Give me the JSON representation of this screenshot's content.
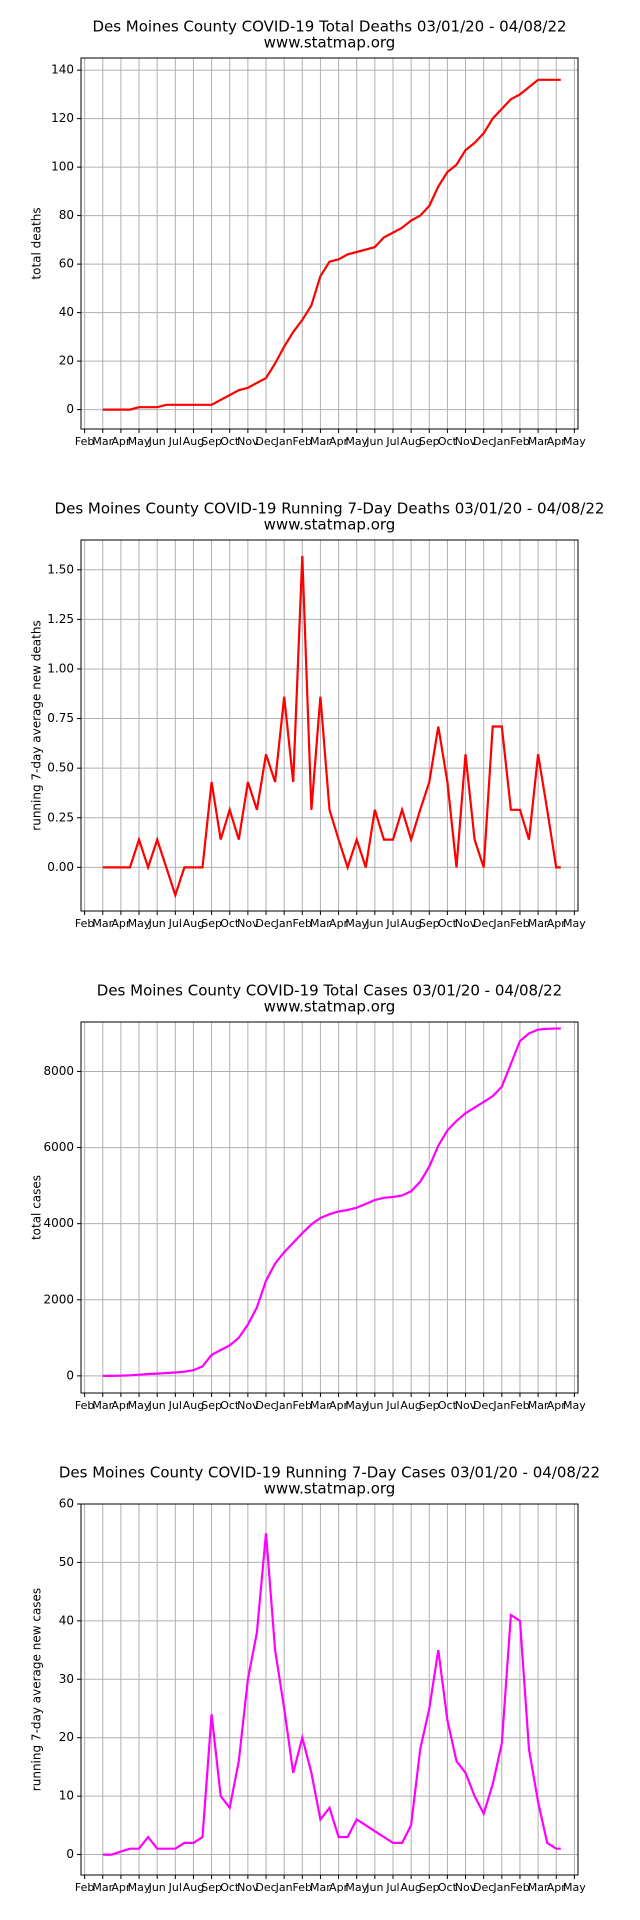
{
  "chart_data": [
    {
      "type": "line",
      "title": "Des Moines County COVID-19 Total Deaths 03/01/20 - 04/08/22",
      "subtitle": "www.statmap.org",
      "ylabel": "total deaths",
      "color": "#ff0000",
      "grid": true,
      "xlim": [
        -0.2,
        27.2
      ],
      "ylim": [
        -8,
        145
      ],
      "yticks": [
        0,
        20,
        40,
        60,
        80,
        100,
        120,
        140
      ],
      "xticks": [
        {
          "value": 0,
          "label": "Feb"
        },
        {
          "value": 1,
          "label": "Mar"
        },
        {
          "value": 2,
          "label": "Apr"
        },
        {
          "value": 3,
          "label": "May"
        },
        {
          "value": 4,
          "label": "Jun"
        },
        {
          "value": 5,
          "label": "Jul"
        },
        {
          "value": 6,
          "label": "Aug"
        },
        {
          "value": 7,
          "label": "Sep"
        },
        {
          "value": 8,
          "label": "Oct"
        },
        {
          "value": 9,
          "label": "Nov"
        },
        {
          "value": 10,
          "label": "Dec"
        },
        {
          "value": 11,
          "label": "Jan"
        },
        {
          "value": 12,
          "label": "Feb"
        },
        {
          "value": 13,
          "label": "Mar"
        },
        {
          "value": 14,
          "label": "Apr"
        },
        {
          "value": 15,
          "label": "May"
        },
        {
          "value": 16,
          "label": "Jun"
        },
        {
          "value": 17,
          "label": "Jul"
        },
        {
          "value": 18,
          "label": "Aug"
        },
        {
          "value": 19,
          "label": "Sep"
        },
        {
          "value": 20,
          "label": "Oct"
        },
        {
          "value": 21,
          "label": "Nov"
        },
        {
          "value": 22,
          "label": "Dec"
        },
        {
          "value": 23,
          "label": "Jan"
        },
        {
          "value": 24,
          "label": "Feb"
        },
        {
          "value": 25,
          "label": "Mar"
        },
        {
          "value": 26,
          "label": "Apr"
        },
        {
          "value": 27,
          "label": "May"
        }
      ],
      "x": [
        1,
        1.5,
        2,
        2.5,
        3,
        3.5,
        4,
        4.5,
        5,
        5.5,
        6,
        6.5,
        7,
        7.5,
        8,
        8.5,
        9,
        9.5,
        10,
        10.5,
        11,
        11.5,
        12,
        12.5,
        13,
        13.5,
        14,
        14.5,
        15,
        15.5,
        16,
        16.5,
        17,
        17.5,
        18,
        18.5,
        19,
        19.5,
        20,
        20.5,
        21,
        21.5,
        22,
        22.5,
        23,
        23.5,
        24,
        24.5,
        25,
        25.5,
        26,
        26.25
      ],
      "values": [
        0,
        0,
        0,
        0,
        1,
        1,
        1,
        2,
        2,
        2,
        2,
        2,
        2,
        4,
        6,
        8,
        9,
        11,
        13,
        19,
        26,
        32,
        37,
        43,
        55,
        61,
        62,
        64,
        65,
        66,
        67,
        71,
        73,
        75,
        78,
        80,
        84,
        92,
        98,
        101,
        107,
        110,
        114,
        120,
        124,
        128,
        130,
        133,
        136,
        136,
        136,
        136
      ]
    },
    {
      "type": "line",
      "title": "Des Moines County COVID-19 Running 7-Day Deaths 03/01/20 - 04/08/22",
      "subtitle": "www.statmap.org",
      "ylabel": "running 7-day average new deaths",
      "color": "#ff0000",
      "grid": true,
      "xlim": [
        -0.2,
        27.2
      ],
      "ylim": [
        -0.22,
        1.65
      ],
      "yticks": [
        {
          "value": 0,
          "label": "0.00"
        },
        {
          "value": 0.25,
          "label": "0.25"
        },
        {
          "value": 0.5,
          "label": "0.50"
        },
        {
          "value": 0.75,
          "label": "0.75"
        },
        {
          "value": 1,
          "label": "1.00"
        },
        {
          "value": 1.25,
          "label": "1.25"
        },
        {
          "value": 1.5,
          "label": "1.50"
        }
      ],
      "xticks": [
        {
          "value": 0,
          "label": "Feb"
        },
        {
          "value": 1,
          "label": "Mar"
        },
        {
          "value": 2,
          "label": "Apr"
        },
        {
          "value": 3,
          "label": "May"
        },
        {
          "value": 4,
          "label": "Jun"
        },
        {
          "value": 5,
          "label": "Jul"
        },
        {
          "value": 6,
          "label": "Aug"
        },
        {
          "value": 7,
          "label": "Sep"
        },
        {
          "value": 8,
          "label": "Oct"
        },
        {
          "value": 9,
          "label": "Nov"
        },
        {
          "value": 10,
          "label": "Dec"
        },
        {
          "value": 11,
          "label": "Jan"
        },
        {
          "value": 12,
          "label": "Feb"
        },
        {
          "value": 13,
          "label": "Mar"
        },
        {
          "value": 14,
          "label": "Apr"
        },
        {
          "value": 15,
          "label": "May"
        },
        {
          "value": 16,
          "label": "Jun"
        },
        {
          "value": 17,
          "label": "Jul"
        },
        {
          "value": 18,
          "label": "Aug"
        },
        {
          "value": 19,
          "label": "Sep"
        },
        {
          "value": 20,
          "label": "Oct"
        },
        {
          "value": 21,
          "label": "Nov"
        },
        {
          "value": 22,
          "label": "Dec"
        },
        {
          "value": 23,
          "label": "Jan"
        },
        {
          "value": 24,
          "label": "Feb"
        },
        {
          "value": 25,
          "label": "Mar"
        },
        {
          "value": 26,
          "label": "Apr"
        },
        {
          "value": 27,
          "label": "May"
        }
      ],
      "x": [
        1,
        1.5,
        2,
        2.5,
        3,
        3.5,
        4,
        4.5,
        5,
        5.5,
        6,
        6.5,
        7,
        7.5,
        8,
        8.5,
        9,
        9.5,
        10,
        10.5,
        11,
        11.5,
        12,
        12.5,
        13,
        13.5,
        14,
        14.5,
        15,
        15.5,
        16,
        16.5,
        17,
        17.5,
        18,
        18.5,
        19,
        19.5,
        20,
        20.5,
        21,
        21.5,
        22,
        22.5,
        23,
        23.5,
        24,
        24.5,
        25,
        25.5,
        26,
        26.25
      ],
      "values": [
        0,
        0,
        0,
        0,
        0.14,
        0,
        0.14,
        0,
        -0.14,
        0,
        0,
        0,
        0.43,
        0.14,
        0.29,
        0.14,
        0.43,
        0.29,
        0.57,
        0.43,
        0.86,
        0.43,
        1.57,
        0.29,
        0.86,
        0.29,
        0.14,
        0,
        0.14,
        0,
        0.29,
        0.14,
        0.14,
        0.29,
        0.14,
        0.29,
        0.43,
        0.71,
        0.43,
        0,
        0.57,
        0.14,
        0,
        0.71,
        0.71,
        0.29,
        0.29,
        0.14,
        0.57,
        0.29,
        0,
        0
      ]
    },
    {
      "type": "line",
      "title": "Des Moines County COVID-19 Total Cases 03/01/20 - 04/08/22",
      "subtitle": "www.statmap.org",
      "ylabel": "total cases",
      "color": "#ff00ff",
      "grid": true,
      "xlim": [
        -0.2,
        27.2
      ],
      "ylim": [
        -450,
        9300
      ],
      "yticks": [
        0,
        2000,
        4000,
        6000,
        8000
      ],
      "xticks": [
        {
          "value": 0,
          "label": "Feb"
        },
        {
          "value": 1,
          "label": "Mar"
        },
        {
          "value": 2,
          "label": "Apr"
        },
        {
          "value": 3,
          "label": "May"
        },
        {
          "value": 4,
          "label": "Jun"
        },
        {
          "value": 5,
          "label": "Jul"
        },
        {
          "value": 6,
          "label": "Aug"
        },
        {
          "value": 7,
          "label": "Sep"
        },
        {
          "value": 8,
          "label": "Oct"
        },
        {
          "value": 9,
          "label": "Nov"
        },
        {
          "value": 10,
          "label": "Dec"
        },
        {
          "value": 11,
          "label": "Jan"
        },
        {
          "value": 12,
          "label": "Feb"
        },
        {
          "value": 13,
          "label": "Mar"
        },
        {
          "value": 14,
          "label": "Apr"
        },
        {
          "value": 15,
          "label": "May"
        },
        {
          "value": 16,
          "label": "Jun"
        },
        {
          "value": 17,
          "label": "Jul"
        },
        {
          "value": 18,
          "label": "Aug"
        },
        {
          "value": 19,
          "label": "Sep"
        },
        {
          "value": 20,
          "label": "Oct"
        },
        {
          "value": 21,
          "label": "Nov"
        },
        {
          "value": 22,
          "label": "Dec"
        },
        {
          "value": 23,
          "label": "Jan"
        },
        {
          "value": 24,
          "label": "Feb"
        },
        {
          "value": 25,
          "label": "Mar"
        },
        {
          "value": 26,
          "label": "Apr"
        },
        {
          "value": 27,
          "label": "May"
        }
      ],
      "x": [
        1,
        1.5,
        2,
        2.5,
        3,
        3.5,
        4,
        4.5,
        5,
        5.5,
        6,
        6.5,
        7,
        7.5,
        8,
        8.5,
        9,
        9.5,
        10,
        10.5,
        11,
        11.5,
        12,
        12.5,
        13,
        13.5,
        14,
        14.5,
        15,
        15.5,
        16,
        16.5,
        17,
        17.5,
        18,
        18.5,
        19,
        19.5,
        20,
        20.5,
        21,
        21.5,
        22,
        22.5,
        23,
        23.5,
        24,
        24.5,
        25,
        25.5,
        26,
        26.25
      ],
      "values": [
        0,
        0,
        5,
        15,
        30,
        50,
        60,
        75,
        90,
        110,
        150,
        250,
        550,
        680,
        800,
        1000,
        1350,
        1800,
        2500,
        2950,
        3250,
        3500,
        3750,
        3980,
        4150,
        4250,
        4320,
        4360,
        4420,
        4520,
        4620,
        4680,
        4700,
        4740,
        4850,
        5100,
        5500,
        6050,
        6450,
        6700,
        6900,
        7050,
        7200,
        7350,
        7600,
        8200,
        8800,
        9000,
        9100,
        9120,
        9130,
        9130
      ]
    },
    {
      "type": "line",
      "title": "Des Moines County COVID-19 Running 7-Day Cases 03/01/20 - 04/08/22",
      "subtitle": "www.statmap.org",
      "ylabel": "running 7-day average new cases",
      "color": "#ff00ff",
      "grid": true,
      "xlim": [
        -0.2,
        27.2
      ],
      "ylim": [
        -3.5,
        60
      ],
      "yticks": [
        0,
        10,
        20,
        30,
        40,
        50,
        60
      ],
      "xticks": [
        {
          "value": 0,
          "label": "Feb"
        },
        {
          "value": 1,
          "label": "Mar"
        },
        {
          "value": 2,
          "label": "Apr"
        },
        {
          "value": 3,
          "label": "May"
        },
        {
          "value": 4,
          "label": "Jun"
        },
        {
          "value": 5,
          "label": "Jul"
        },
        {
          "value": 6,
          "label": "Aug"
        },
        {
          "value": 7,
          "label": "Sep"
        },
        {
          "value": 8,
          "label": "Oct"
        },
        {
          "value": 9,
          "label": "Nov"
        },
        {
          "value": 10,
          "label": "Dec"
        },
        {
          "value": 11,
          "label": "Jan"
        },
        {
          "value": 12,
          "label": "Feb"
        },
        {
          "value": 13,
          "label": "Mar"
        },
        {
          "value": 14,
          "label": "Apr"
        },
        {
          "value": 15,
          "label": "May"
        },
        {
          "value": 16,
          "label": "Jun"
        },
        {
          "value": 17,
          "label": "Jul"
        },
        {
          "value": 18,
          "label": "Aug"
        },
        {
          "value": 19,
          "label": "Sep"
        },
        {
          "value": 20,
          "label": "Oct"
        },
        {
          "value": 21,
          "label": "Nov"
        },
        {
          "value": 22,
          "label": "Dec"
        },
        {
          "value": 23,
          "label": "Jan"
        },
        {
          "value": 24,
          "label": "Feb"
        },
        {
          "value": 25,
          "label": "Mar"
        },
        {
          "value": 26,
          "label": "Apr"
        },
        {
          "value": 27,
          "label": "May"
        }
      ],
      "x": [
        1,
        1.5,
        2,
        2.5,
        3,
        3.5,
        4,
        4.5,
        5,
        5.5,
        6,
        6.5,
        7,
        7.5,
        8,
        8.5,
        9,
        9.5,
        10,
        10.5,
        11,
        11.5,
        12,
        12.5,
        13,
        13.5,
        14,
        14.5,
        15,
        15.5,
        16,
        16.5,
        17,
        17.5,
        18,
        18.5,
        19,
        19.5,
        20,
        20.5,
        21,
        21.5,
        22,
        22.5,
        23,
        23.5,
        24,
        24.5,
        25,
        25.5,
        26,
        26.25
      ],
      "values": [
        0,
        0,
        0.5,
        1,
        1,
        3,
        1,
        1,
        1,
        2,
        2,
        3,
        24,
        10,
        8,
        16,
        30,
        38,
        55,
        35,
        25,
        14,
        20,
        14,
        6,
        8,
        3,
        3,
        6,
        5,
        4,
        3,
        2,
        2,
        5,
        18,
        25,
        35,
        23,
        16,
        14,
        10,
        7,
        12,
        19,
        41,
        40,
        18,
        9,
        2,
        1,
        1
      ]
    }
  ]
}
